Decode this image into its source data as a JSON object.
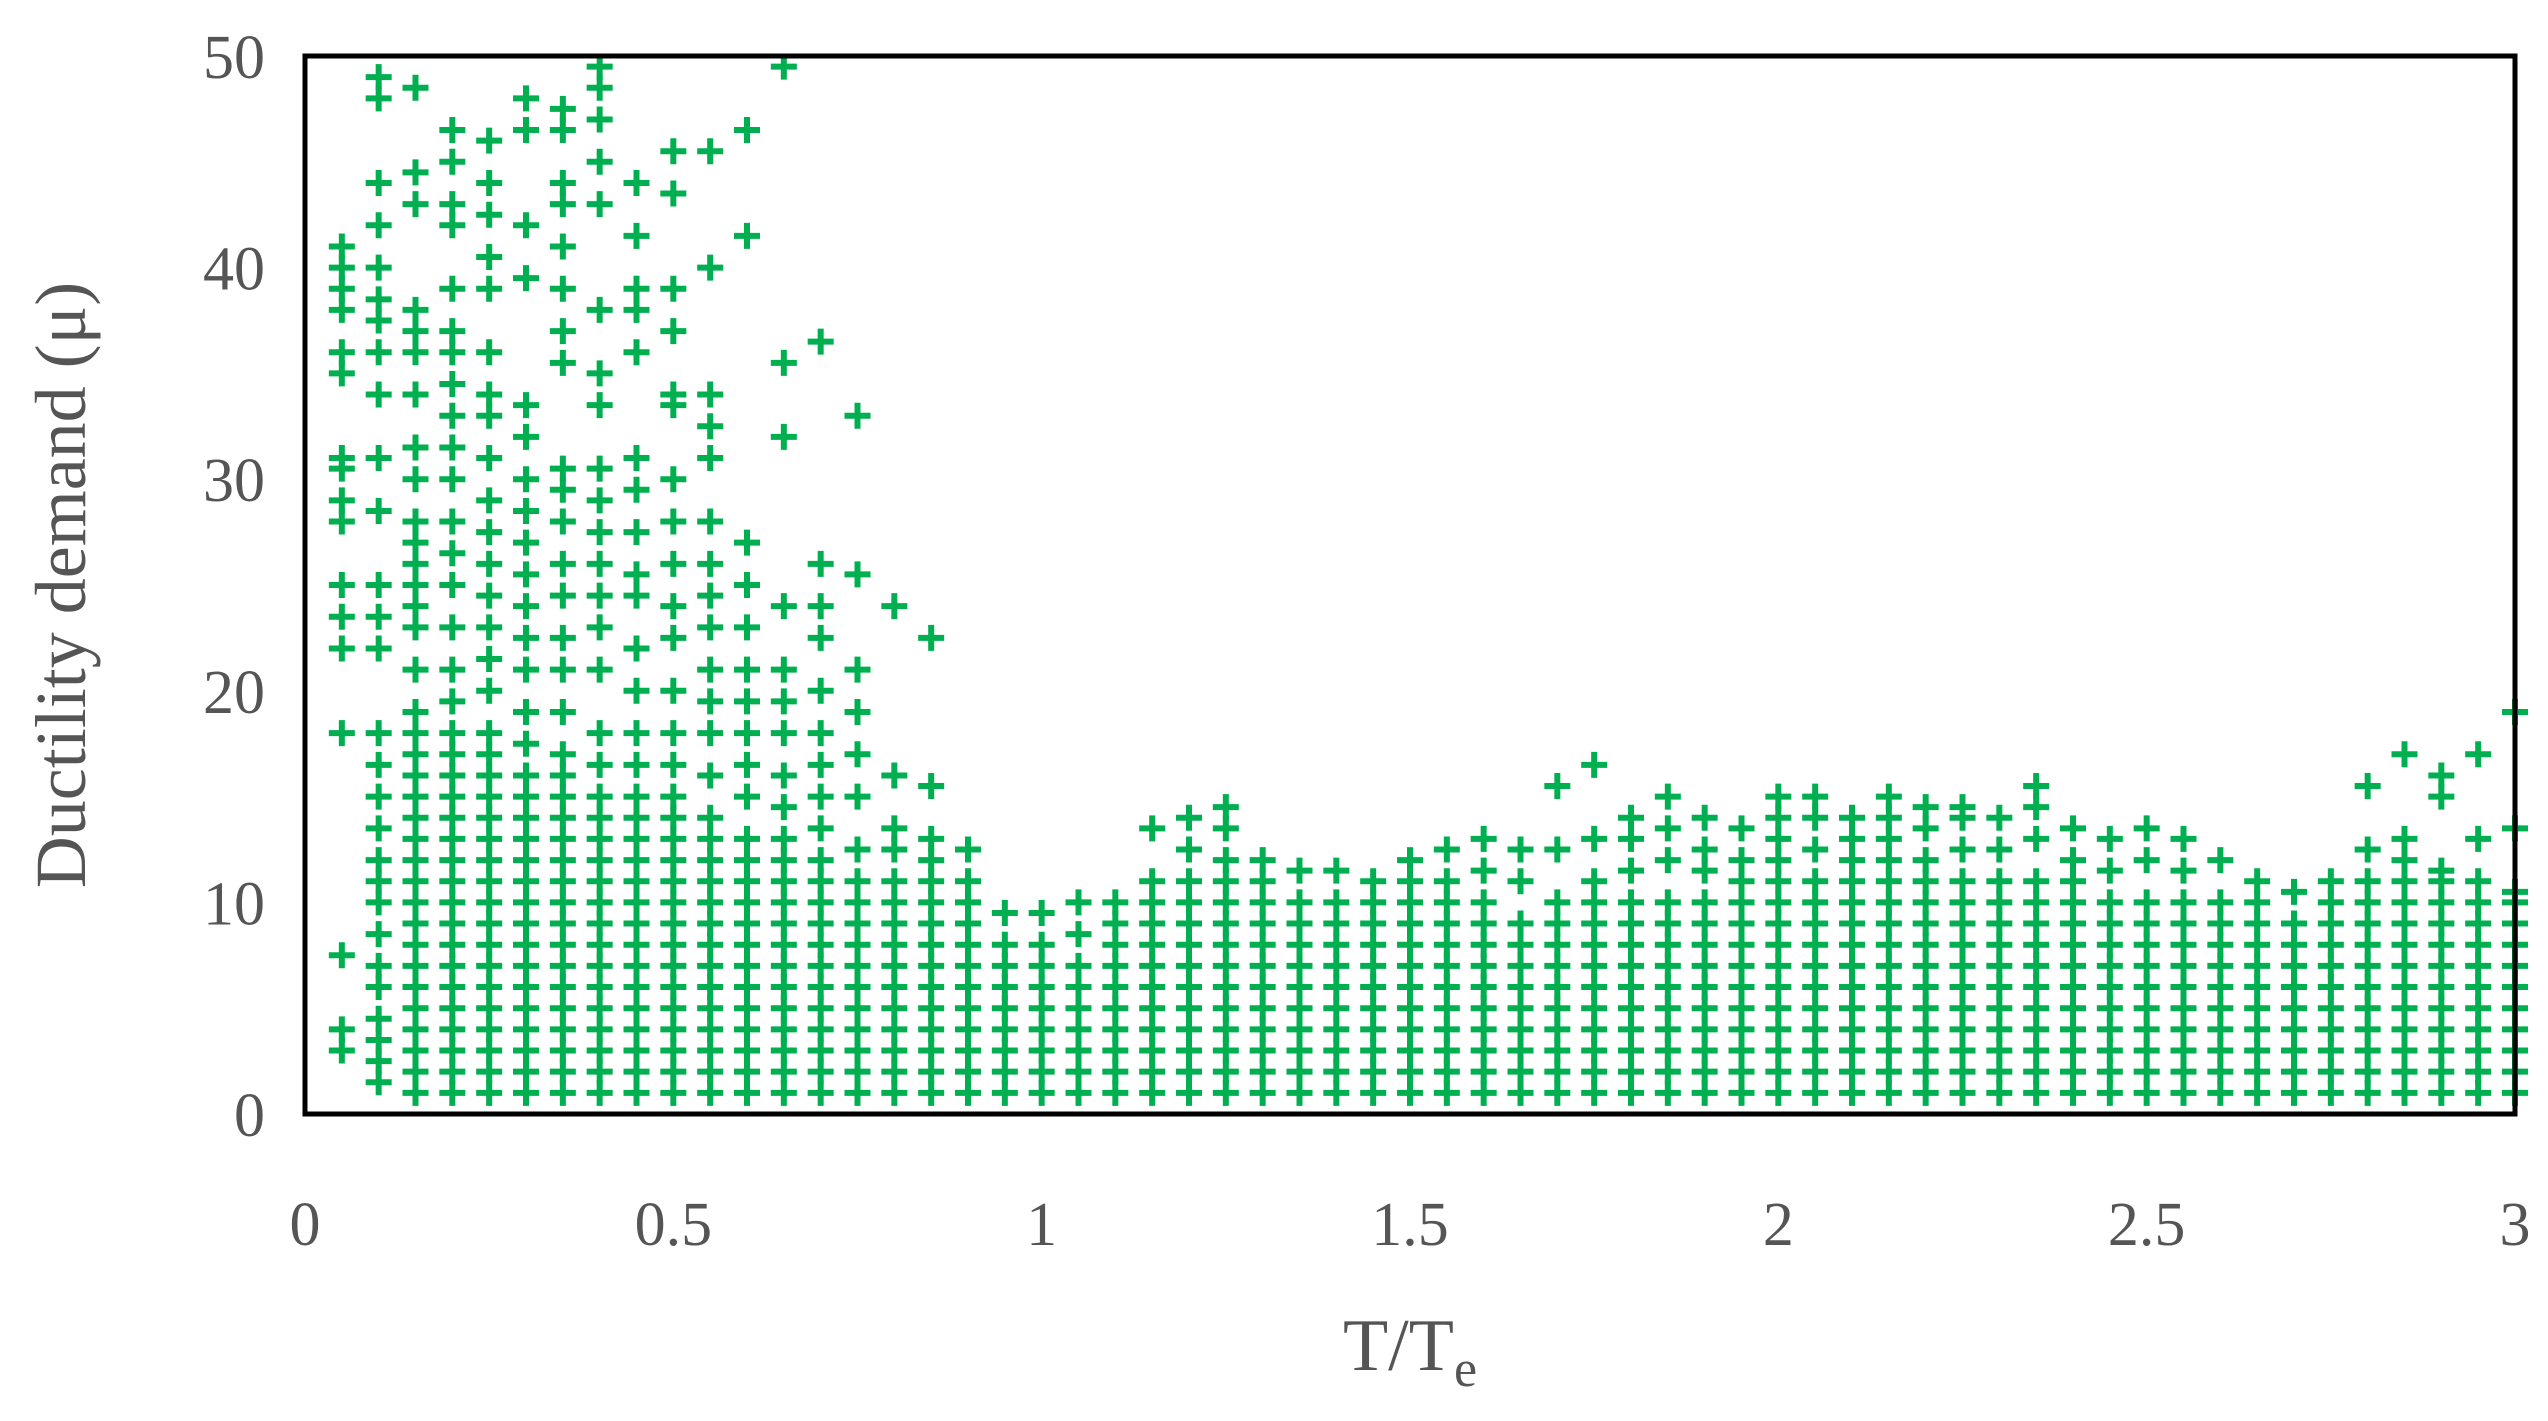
{
  "chart_data": {
    "type": "scatter",
    "x_label": "T/T",
    "x_label_subscript": "e",
    "y_label": "Ductility demand (μ)",
    "color": "#00b050",
    "xlim": [
      0,
      3
    ],
    "ylim": [
      0,
      50
    ],
    "xticks": [
      0,
      0.5,
      1,
      1.5,
      2,
      2.5,
      3
    ],
    "yticks": [
      0,
      10,
      20,
      30,
      40,
      50
    ],
    "grid": false,
    "x": [
      0.05,
      0.1,
      0.15,
      0.2,
      0.25,
      0.3,
      0.35,
      0.4,
      0.45,
      0.5,
      0.55,
      0.6,
      0.65,
      0.7,
      0.75,
      0.8,
      0.85,
      0.9,
      0.95,
      1,
      1.05,
      1.1,
      1.15,
      1.2,
      1.25,
      1.3,
      1.35,
      1.4,
      1.45,
      1.5,
      1.55,
      1.6,
      1.65,
      1.7,
      1.75,
      1.8,
      1.85,
      1.9,
      1.95,
      2,
      2.05,
      2.1,
      2.15,
      2.2,
      2.25,
      2.3,
      2.35,
      2.4,
      2.45,
      2.5,
      2.55,
      2.6,
      2.65,
      2.7,
      2.75,
      2.8,
      2.85,
      2.9,
      2.95,
      3
    ],
    "values": [
      [
        3,
        4,
        7.5,
        18,
        22,
        23.5,
        25,
        28,
        29,
        30.5,
        31,
        35,
        36,
        38,
        39,
        40,
        41
      ],
      [
        1.5,
        2.5,
        3.5,
        4.5,
        6,
        7,
        8.5,
        10,
        11,
        12,
        13.5,
        15,
        16.5,
        18,
        22,
        23.5,
        25,
        28.5,
        31,
        34,
        36,
        37.5,
        38.5,
        40,
        42,
        44,
        48,
        49
      ],
      [
        1,
        2,
        3,
        4,
        5,
        6,
        7,
        8,
        9,
        10,
        11,
        12,
        13,
        14,
        15,
        16,
        17,
        18,
        19,
        21,
        23,
        24,
        25,
        26,
        27,
        28,
        30,
        31.5,
        34,
        36,
        37,
        38,
        43,
        44.5,
        48.5
      ],
      [
        1,
        2,
        3,
        4,
        5,
        6,
        7,
        8,
        9,
        10,
        11,
        12,
        13,
        14,
        15,
        16,
        17,
        18,
        19.5,
        21,
        23,
        25,
        26.5,
        28,
        30,
        31.5,
        33,
        34.5,
        36,
        37,
        39,
        42,
        43,
        45,
        46.5
      ],
      [
        1,
        2,
        3,
        4,
        5,
        6,
        7,
        8,
        9,
        10,
        11,
        12,
        13,
        14,
        15,
        16,
        17,
        18,
        20,
        21.5,
        23,
        24.5,
        26,
        27.5,
        29,
        31,
        33,
        34,
        36,
        39,
        40.5,
        42.5,
        44,
        46
      ],
      [
        1,
        2,
        3,
        4,
        5,
        6,
        7,
        8,
        9,
        10,
        11,
        12,
        13,
        14,
        15,
        16,
        17.5,
        19,
        21,
        22.5,
        24,
        25.5,
        27,
        28.5,
        30,
        32,
        33.5,
        39.5,
        42,
        46.5,
        48
      ],
      [
        1,
        2,
        3,
        4,
        5,
        6,
        7,
        8,
        9,
        10,
        11,
        12,
        13,
        14,
        15,
        16,
        17,
        19,
        21,
        22.5,
        24.5,
        26,
        28,
        29.5,
        30.5,
        35.5,
        37,
        39,
        41,
        43,
        44,
        46.5,
        47.5
      ],
      [
        1,
        2,
        3,
        4,
        5,
        6,
        7,
        8,
        9,
        10,
        11,
        12,
        13,
        14,
        15,
        16.5,
        18,
        21,
        23,
        24.5,
        26,
        27.5,
        29,
        30.5,
        33.5,
        35,
        38,
        43,
        45,
        47,
        48.5,
        49.5
      ],
      [
        1,
        2,
        3,
        4,
        5,
        6,
        7,
        8,
        9,
        10,
        11,
        12,
        13,
        14,
        15,
        16.5,
        18,
        20,
        22,
        24.5,
        25.5,
        27.5,
        29.5,
        31,
        36,
        38,
        39,
        41.5,
        44
      ],
      [
        1,
        2,
        3,
        4,
        5,
        6,
        7,
        8,
        9,
        10,
        11,
        12,
        13,
        14,
        15,
        16.5,
        18,
        20,
        22.5,
        24,
        26,
        28,
        30,
        33.5,
        34,
        37,
        39,
        43.5,
        45.5
      ],
      [
        1,
        2,
        3,
        4,
        5,
        6,
        7,
        8,
        9,
        10,
        11,
        12,
        13,
        14,
        16,
        18,
        19.5,
        21,
        23,
        24.5,
        26,
        28,
        31,
        32.5,
        34,
        40,
        45.5
      ],
      [
        1,
        2,
        3,
        4,
        5,
        6,
        7,
        8,
        9,
        10,
        11,
        12,
        13,
        15,
        16.5,
        18,
        19.5,
        21,
        23,
        25,
        27,
        41.5,
        46.5
      ],
      [
        1,
        2,
        3,
        4,
        5,
        6,
        7,
        8,
        9,
        10,
        11,
        12,
        13,
        14.5,
        16,
        18,
        19.5,
        21,
        24,
        32,
        35.5,
        49.5
      ],
      [
        1,
        2,
        3,
        4,
        5,
        6,
        7,
        8,
        9,
        10,
        11,
        12,
        13.5,
        15,
        16.5,
        18,
        20,
        22.5,
        24,
        26,
        36.5
      ],
      [
        1,
        2,
        3,
        4,
        5,
        6,
        7,
        8,
        9,
        10,
        11,
        12.5,
        15,
        17,
        19,
        21,
        25.5,
        33
      ],
      [
        1,
        2,
        3,
        4,
        5,
        6,
        7,
        8,
        9,
        10,
        11,
        12.5,
        13.5,
        16,
        24
      ],
      [
        1,
        2,
        3,
        4,
        5,
        6,
        7,
        8,
        9,
        10,
        11,
        12,
        13,
        15.5,
        22.5
      ],
      [
        1,
        2,
        3,
        4,
        5,
        6,
        7,
        8,
        9,
        10,
        11,
        12.5
      ],
      [
        1,
        2,
        3,
        4,
        5,
        6,
        7,
        8,
        9.5
      ],
      [
        1,
        2,
        3,
        4,
        5,
        6,
        7,
        8,
        9.5
      ],
      [
        1,
        2,
        3,
        4,
        5,
        6,
        7,
        8.5,
        10
      ],
      [
        1,
        2,
        3,
        4,
        5,
        6,
        7,
        8,
        9,
        10
      ],
      [
        1,
        2,
        3,
        4,
        5,
        6,
        7,
        8,
        9,
        10,
        11,
        13.5
      ],
      [
        1,
        2,
        3,
        4,
        5,
        6,
        7,
        8,
        9,
        10,
        11,
        12.5,
        14
      ],
      [
        1,
        2,
        3,
        4,
        5,
        6,
        7,
        8,
        9,
        10,
        11,
        12,
        13.5,
        14.5
      ],
      [
        1,
        2,
        3,
        4,
        5,
        6,
        7,
        8,
        9,
        10,
        11,
        12
      ],
      [
        1,
        2,
        3,
        4,
        5,
        6,
        7,
        8,
        9,
        10,
        11.5
      ],
      [
        1,
        2,
        3,
        4,
        5,
        6,
        7,
        8,
        9,
        10,
        11.5
      ],
      [
        1,
        2,
        3,
        4,
        5,
        6,
        7,
        8,
        9,
        10,
        11
      ],
      [
        1,
        2,
        3,
        4,
        5,
        6,
        7,
        8,
        9,
        10,
        11,
        12
      ],
      [
        1,
        2,
        3,
        4,
        5,
        6,
        7,
        8,
        9,
        10,
        11,
        12.5
      ],
      [
        1,
        2,
        3,
        4,
        5,
        6,
        7,
        8,
        9,
        10,
        11.5,
        13
      ],
      [
        1,
        2,
        3,
        4,
        5,
        6,
        7,
        8,
        9,
        11,
        12.5
      ],
      [
        1,
        2,
        3,
        4,
        5,
        6,
        7,
        8,
        9,
        10,
        12.5,
        15.5
      ],
      [
        1,
        2,
        3,
        4,
        5,
        6,
        7,
        8,
        9,
        10,
        11,
        13,
        16.5
      ],
      [
        1,
        2,
        3,
        4,
        5,
        6,
        7,
        8,
        9,
        10,
        11.5,
        13,
        14
      ],
      [
        1,
        2,
        3,
        4,
        5,
        6,
        7,
        8,
        9,
        10,
        12,
        13.5,
        15
      ],
      [
        1,
        2,
        3,
        4,
        5,
        6,
        7,
        8,
        9,
        10,
        11.5,
        12.5,
        14
      ],
      [
        1,
        2,
        3,
        4,
        5,
        6,
        7,
        8,
        9,
        10,
        11,
        12,
        13.5
      ],
      [
        1,
        2,
        3,
        4,
        5,
        6,
        7,
        8,
        9,
        10,
        11,
        12,
        13,
        14,
        15
      ],
      [
        1,
        2,
        3,
        4,
        5,
        6,
        7,
        8,
        9,
        10,
        11,
        12.5,
        14,
        15
      ],
      [
        1,
        2,
        3,
        4,
        5,
        6,
        7,
        8,
        9,
        10,
        11,
        12,
        13,
        14
      ],
      [
        1,
        2,
        3,
        4,
        5,
        6,
        7,
        8,
        9,
        10,
        11,
        12,
        13,
        14,
        15
      ],
      [
        1,
        2,
        3,
        4,
        5,
        6,
        7,
        8,
        9,
        10,
        11,
        12,
        13.5,
        14.5
      ],
      [
        1,
        2,
        3,
        4,
        5,
        6,
        7,
        8,
        9,
        10,
        11,
        12.5,
        14,
        14.5
      ],
      [
        1,
        2,
        3,
        4,
        5,
        6,
        7,
        8,
        9,
        10,
        11,
        12.5,
        14
      ],
      [
        1,
        2,
        3,
        4,
        5,
        6,
        7,
        8,
        9,
        10,
        11,
        13,
        14.5,
        15.5
      ],
      [
        1,
        2,
        3,
        4,
        5,
        6,
        7,
        8,
        9,
        10,
        11,
        12,
        13.5
      ],
      [
        1,
        2,
        3,
        4,
        5,
        6,
        7,
        8,
        9,
        10,
        11.5,
        13
      ],
      [
        1,
        2,
        3,
        4,
        5,
        6,
        7,
        8,
        9,
        10,
        12,
        13.5
      ],
      [
        1,
        2,
        3,
        4,
        5,
        6,
        7,
        8,
        9,
        10,
        11.5,
        13
      ],
      [
        1,
        2,
        3,
        4,
        5,
        6,
        7,
        8,
        9,
        10,
        12
      ],
      [
        1,
        2,
        3,
        4,
        5,
        6,
        7,
        8,
        9,
        10,
        11
      ],
      [
        1,
        2,
        3,
        4,
        5,
        6,
        7,
        8,
        9,
        10.5
      ],
      [
        1,
        2,
        3,
        4,
        5,
        6,
        7,
        8,
        9,
        10,
        11
      ],
      [
        1,
        2,
        3,
        4,
        5,
        6,
        7,
        8,
        9,
        10,
        11,
        12.5,
        15.5
      ],
      [
        1,
        2,
        3,
        4,
        5,
        6,
        7,
        8,
        9,
        10,
        11,
        12,
        13,
        17
      ],
      [
        1,
        2,
        3,
        4,
        5,
        6,
        7,
        8,
        9,
        10,
        11,
        11.5,
        15,
        16
      ],
      [
        1,
        2,
        3,
        4,
        5,
        6,
        7,
        8,
        9,
        10,
        11,
        13,
        17
      ],
      [
        1,
        2,
        3,
        4,
        5,
        6,
        7,
        8,
        9,
        10,
        10.5,
        13.5,
        19
      ]
    ]
  }
}
